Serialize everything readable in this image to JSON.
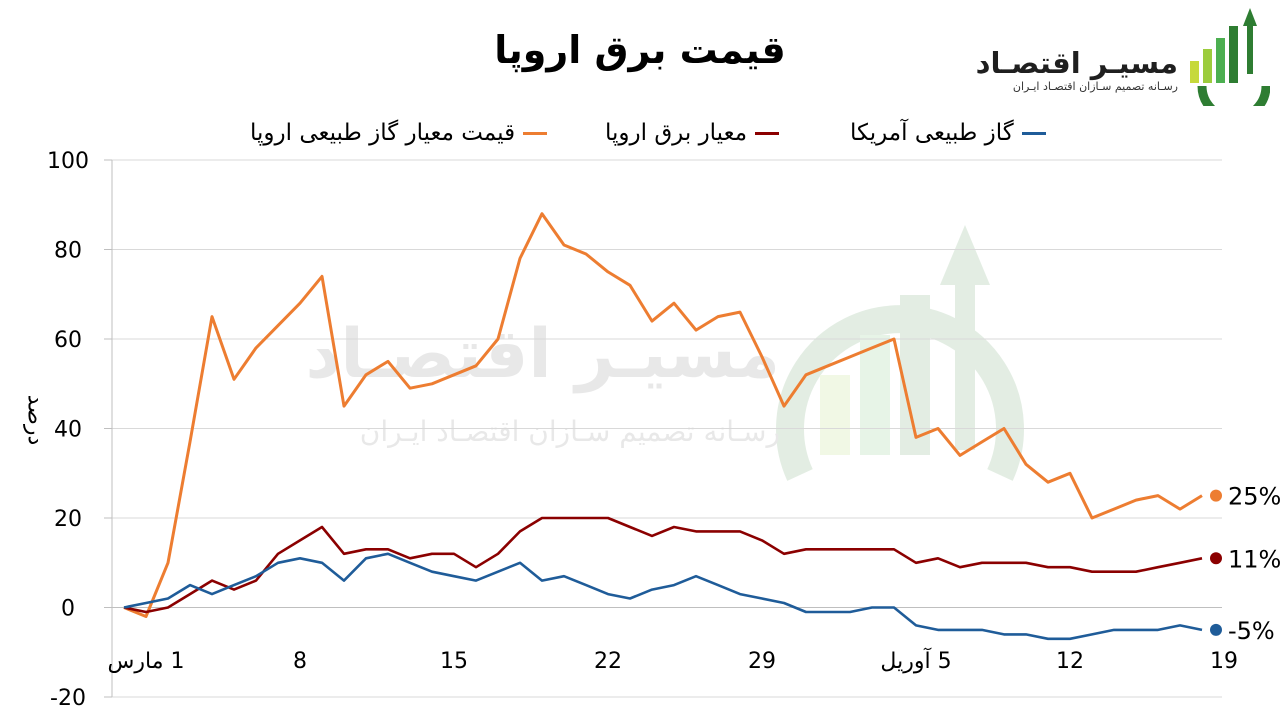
{
  "chart_data": {
    "type": "line",
    "title": "قیمت برق اروپا",
    "ylabel": "درصد",
    "xlabel": "",
    "ylim": [
      -20,
      100
    ],
    "yticks": [
      "100",
      "80",
      "60",
      "40",
      "20",
      "0",
      "-20"
    ],
    "xticks": [
      {
        "index": 1,
        "label": "1 مارس"
      },
      {
        "index": 8,
        "label": "8"
      },
      {
        "index": 15,
        "label": "15"
      },
      {
        "index": 22,
        "label": "22"
      },
      {
        "index": 29,
        "label": "29"
      },
      {
        "index": 36,
        "label": "5 آوریل"
      },
      {
        "index": 43,
        "label": "12"
      },
      {
        "index": 50,
        "label": "19"
      }
    ],
    "legend_position": "top",
    "grid": "horizontal",
    "series": [
      {
        "name": "قیمت معیار گاز طبیعی اروپا",
        "color": "#ED7D31",
        "end_label": "25%",
        "values": [
          0,
          -2,
          10,
          37,
          65,
          51,
          58,
          63,
          68,
          74,
          45,
          52,
          55,
          49,
          50,
          52,
          54,
          60,
          78,
          88,
          81,
          79,
          75,
          72,
          64,
          68,
          62,
          65,
          66,
          56,
          45,
          52,
          54,
          56,
          58,
          60,
          38,
          40,
          34,
          37,
          40,
          32,
          28,
          30,
          20,
          22,
          24,
          25,
          22,
          25
        ]
      },
      {
        "name": "معیار برق اروپا",
        "color": "#8B0000",
        "end_label": "11%",
        "values": [
          0,
          -1,
          0,
          3,
          6,
          4,
          6,
          12,
          15,
          18,
          12,
          13,
          13,
          11,
          12,
          12,
          9,
          12,
          17,
          20,
          20,
          20,
          20,
          18,
          16,
          18,
          17,
          17,
          17,
          15,
          12,
          13,
          13,
          13,
          13,
          13,
          10,
          11,
          9,
          10,
          10,
          10,
          9,
          9,
          8,
          8,
          8,
          9,
          10,
          11
        ]
      },
      {
        "name": "گاز طبیعی آمریکا",
        "color": "#1F5C99",
        "end_label": "-5%",
        "values": [
          0,
          1,
          2,
          5,
          3,
          5,
          7,
          10,
          11,
          10,
          6,
          11,
          12,
          10,
          8,
          7,
          6,
          8,
          10,
          6,
          7,
          5,
          3,
          2,
          4,
          5,
          7,
          5,
          3,
          2,
          1,
          -1,
          -1,
          -1,
          0,
          0,
          -4,
          -5,
          -5,
          -5,
          -6,
          -6,
          -7,
          -7,
          -6,
          -5,
          -5,
          -5,
          -4,
          -5
        ]
      }
    ]
  },
  "logo": {
    "name": "مسیـر اقتصـاد",
    "tagline": "رسـانه تصمیم سـازان اقتصـاد ایـران"
  }
}
